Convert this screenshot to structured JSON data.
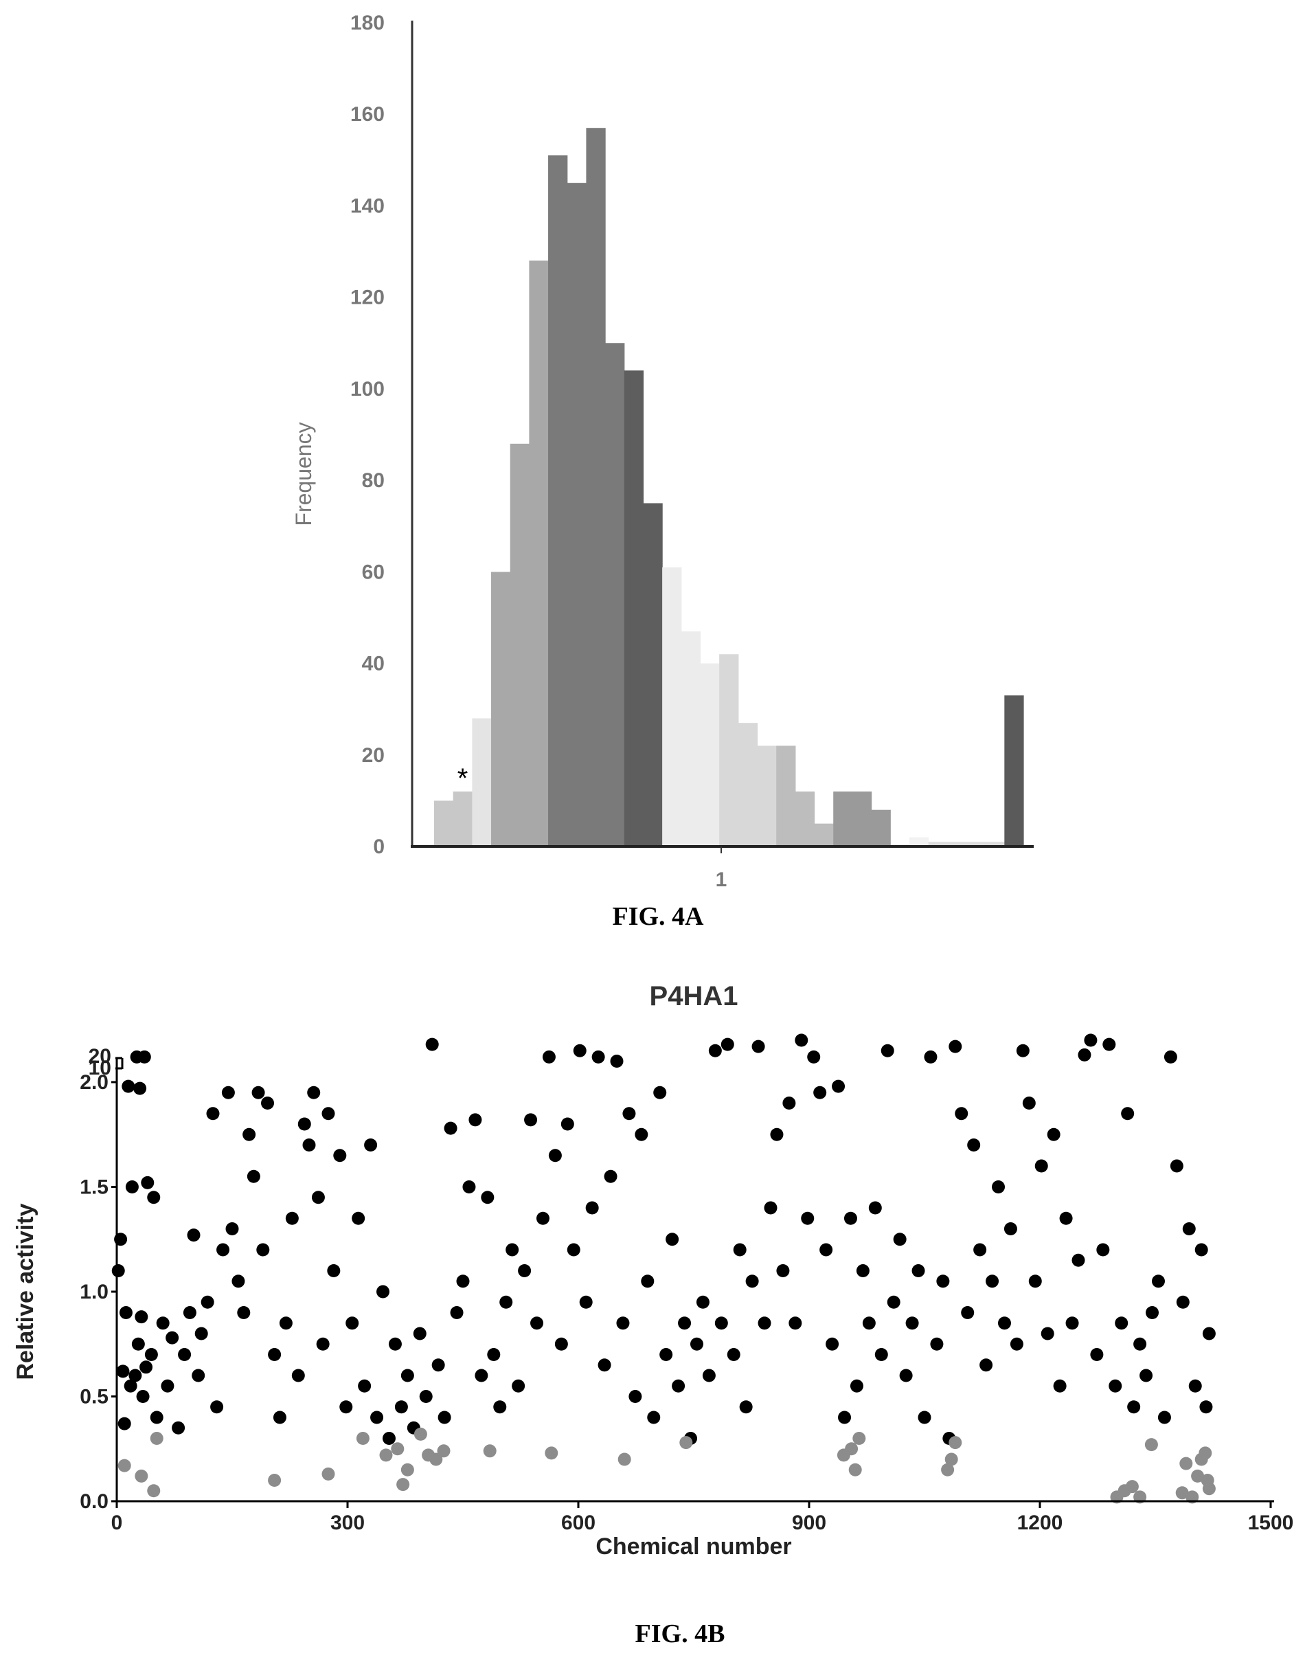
{
  "figure_a": {
    "caption": "FIG. 4A",
    "marker": "*"
  },
  "figure_b": {
    "caption": "FIG. 4B"
  },
  "chart_data": [
    {
      "type": "bar",
      "ylabel": "Frequency",
      "x_tick_labels": [
        "1"
      ],
      "ylim": [
        0,
        180
      ],
      "y_ticks": [
        0,
        20,
        40,
        60,
        80,
        100,
        120,
        140,
        160,
        180
      ],
      "values": [
        10,
        12,
        28,
        60,
        88,
        128,
        151,
        145,
        157,
        110,
        104,
        75,
        61,
        47,
        40,
        42,
        27,
        22,
        22,
        12,
        5,
        12,
        12,
        8,
        0,
        2,
        1,
        1,
        1,
        1,
        33
      ],
      "bar_shades": [
        "#c8c8c8",
        "#c8c8c8",
        "#e4e4e4",
        "#a8a8a8",
        "#a8a8a8",
        "#a8a8a8",
        "#7a7a7a",
        "#7a7a7a",
        "#7a7a7a",
        "#7a7a7a",
        "#5e5e5e",
        "#5e5e5e",
        "#ececec",
        "#ececec",
        "#ececec",
        "#d8d8d8",
        "#d8d8d8",
        "#d8d8d8",
        "#bdbdbd",
        "#bdbdbd",
        "#bdbdbd",
        "#9a9a9a",
        "#9a9a9a",
        "#9a9a9a",
        "#f2f2f2",
        "#f2f2f2",
        "#dddddd",
        "#dddddd",
        "#dddddd",
        "#dddddd",
        "#5a5a5a"
      ],
      "marker_bin_index": 1,
      "grid": false
    },
    {
      "type": "scatter",
      "title": "P4HA1",
      "xlabel": "Chemical number",
      "ylabel": "Relative activity",
      "xlim": [
        0,
        1500
      ],
      "x_ticks": [
        0,
        300,
        600,
        900,
        1200,
        1500
      ],
      "ylim": [
        0,
        2.0
      ],
      "y_ticks": [
        "0.0",
        "0.5",
        "1.0",
        "1.5",
        "2.0"
      ],
      "y_break_ticks": [
        "10",
        "20"
      ],
      "n_points": 1420,
      "grid": false,
      "colors": {
        "active": "#000000",
        "inhibitor_hit": "#8c8c8c"
      },
      "series": [
        {
          "points": [
            [
              2,
              1.1
            ],
            [
              5,
              1.25
            ],
            [
              8,
              0.62
            ],
            [
              10,
              0.37
            ],
            [
              12,
              0.9
            ],
            [
              15,
              1.98
            ],
            [
              18,
              0.55
            ],
            [
              20,
              1.5
            ],
            [
              24,
              0.6
            ],
            [
              26,
              2.12
            ],
            [
              28,
              0.75
            ],
            [
              30,
              1.97
            ],
            [
              32,
              0.88
            ],
            [
              34,
              0.5
            ],
            [
              36,
              2.12
            ],
            [
              38,
              0.64
            ],
            [
              40,
              1.52
            ],
            [
              45,
              0.7
            ],
            [
              48,
              1.45
            ],
            [
              52,
              0.4
            ],
            [
              60,
              0.85
            ],
            [
              66,
              0.55
            ],
            [
              72,
              0.78
            ],
            [
              80,
              0.35
            ],
            [
              88,
              0.7
            ],
            [
              95,
              0.9
            ],
            [
              100,
              1.27
            ],
            [
              106,
              0.6
            ],
            [
              110,
              0.8
            ],
            [
              118,
              0.95
            ],
            [
              125,
              1.85
            ],
            [
              130,
              0.45
            ],
            [
              138,
              1.2
            ],
            [
              145,
              1.95
            ],
            [
              150,
              1.3
            ],
            [
              158,
              1.05
            ],
            [
              165,
              0.9
            ],
            [
              172,
              1.75
            ],
            [
              178,
              1.55
            ],
            [
              184,
              1.95
            ],
            [
              190,
              1.2
            ],
            [
              196,
              1.9
            ],
            [
              205,
              0.7
            ],
            [
              212,
              0.4
            ],
            [
              220,
              0.85
            ],
            [
              228,
              1.35
            ],
            [
              236,
              0.6
            ],
            [
              244,
              1.8
            ],
            [
              250,
              1.7
            ],
            [
              256,
              1.95
            ],
            [
              262,
              1.45
            ],
            [
              268,
              0.75
            ],
            [
              275,
              1.85
            ],
            [
              282,
              1.1
            ],
            [
              290,
              1.65
            ],
            [
              298,
              0.45
            ],
            [
              306,
              0.85
            ],
            [
              314,
              1.35
            ],
            [
              322,
              0.55
            ],
            [
              330,
              1.7
            ],
            [
              338,
              0.4
            ],
            [
              346,
              1.0
            ],
            [
              354,
              0.3
            ],
            [
              362,
              0.75
            ],
            [
              370,
              0.45
            ],
            [
              378,
              0.6
            ],
            [
              386,
              0.35
            ],
            [
              394,
              0.8
            ],
            [
              402,
              0.5
            ],
            [
              410,
              2.18
            ],
            [
              418,
              0.65
            ],
            [
              426,
              0.4
            ],
            [
              434,
              1.78
            ],
            [
              442,
              0.9
            ],
            [
              450,
              1.05
            ],
            [
              458,
              1.5
            ],
            [
              466,
              1.82
            ],
            [
              474,
              0.6
            ],
            [
              482,
              1.45
            ],
            [
              490,
              0.7
            ],
            [
              498,
              0.45
            ],
            [
              506,
              0.95
            ],
            [
              514,
              1.2
            ],
            [
              522,
              0.55
            ],
            [
              530,
              1.1
            ],
            [
              538,
              1.82
            ],
            [
              546,
              0.85
            ],
            [
              554,
              1.35
            ],
            [
              562,
              2.12
            ],
            [
              570,
              1.65
            ],
            [
              578,
              0.75
            ],
            [
              586,
              1.8
            ],
            [
              594,
              1.2
            ],
            [
              602,
              2.15
            ],
            [
              610,
              0.95
            ],
            [
              618,
              1.4
            ],
            [
              626,
              2.12
            ],
            [
              634,
              0.65
            ],
            [
              642,
              1.55
            ],
            [
              650,
              2.1
            ],
            [
              658,
              0.85
            ],
            [
              666,
              1.85
            ],
            [
              674,
              0.5
            ],
            [
              682,
              1.75
            ],
            [
              690,
              1.05
            ],
            [
              698,
              0.4
            ],
            [
              706,
              1.95
            ],
            [
              714,
              0.7
            ],
            [
              722,
              1.25
            ],
            [
              730,
              0.55
            ],
            [
              738,
              0.85
            ],
            [
              746,
              0.3
            ],
            [
              754,
              0.75
            ],
            [
              762,
              0.95
            ],
            [
              770,
              0.6
            ],
            [
              778,
              2.15
            ],
            [
              786,
              0.85
            ],
            [
              794,
              2.18
            ],
            [
              802,
              0.7
            ],
            [
              810,
              1.2
            ],
            [
              818,
              0.45
            ],
            [
              826,
              1.05
            ],
            [
              834,
              2.17
            ],
            [
              842,
              0.85
            ],
            [
              850,
              1.4
            ],
            [
              858,
              1.75
            ],
            [
              866,
              1.1
            ],
            [
              874,
              1.9
            ],
            [
              882,
              0.85
            ],
            [
              890,
              2.2
            ],
            [
              898,
              1.35
            ],
            [
              906,
              2.12
            ],
            [
              914,
              1.95
            ],
            [
              922,
              1.2
            ],
            [
              930,
              0.75
            ],
            [
              938,
              1.98
            ],
            [
              946,
              0.4
            ],
            [
              954,
              1.35
            ],
            [
              962,
              0.55
            ],
            [
              970,
              1.1
            ],
            [
              978,
              0.85
            ],
            [
              986,
              1.4
            ],
            [
              994,
              0.7
            ],
            [
              1002,
              2.15
            ],
            [
              1010,
              0.95
            ],
            [
              1018,
              1.25
            ],
            [
              1026,
              0.6
            ],
            [
              1034,
              0.85
            ],
            [
              1042,
              1.1
            ],
            [
              1050,
              0.4
            ],
            [
              1058,
              2.12
            ],
            [
              1066,
              0.75
            ],
            [
              1074,
              1.05
            ],
            [
              1082,
              0.3
            ],
            [
              1090,
              2.17
            ],
            [
              1098,
              1.85
            ],
            [
              1106,
              0.9
            ],
            [
              1114,
              1.7
            ],
            [
              1122,
              1.2
            ],
            [
              1130,
              0.65
            ],
            [
              1138,
              1.05
            ],
            [
              1146,
              1.5
            ],
            [
              1154,
              0.85
            ],
            [
              1162,
              1.3
            ],
            [
              1170,
              0.75
            ],
            [
              1178,
              2.15
            ],
            [
              1186,
              1.9
            ],
            [
              1194,
              1.05
            ],
            [
              1202,
              1.6
            ],
            [
              1210,
              0.8
            ],
            [
              1218,
              1.75
            ],
            [
              1226,
              0.55
            ],
            [
              1234,
              1.35
            ],
            [
              1242,
              0.85
            ],
            [
              1250,
              1.15
            ],
            [
              1258,
              2.13
            ],
            [
              1266,
              2.2
            ],
            [
              1274,
              0.7
            ],
            [
              1282,
              1.2
            ],
            [
              1290,
              2.18
            ],
            [
              1298,
              0.55
            ],
            [
              1306,
              0.85
            ],
            [
              1314,
              1.85
            ],
            [
              1322,
              0.45
            ],
            [
              1330,
              0.75
            ],
            [
              1338,
              0.6
            ],
            [
              1346,
              0.9
            ],
            [
              1354,
              1.05
            ],
            [
              1362,
              0.4
            ],
            [
              1370,
              2.12
            ],
            [
              1378,
              1.6
            ],
            [
              1386,
              0.95
            ],
            [
              1394,
              1.3
            ],
            [
              1402,
              0.55
            ],
            [
              1410,
              1.2
            ],
            [
              1416,
              0.45
            ],
            [
              1420,
              0.8
            ]
          ]
        },
        {
          "points": [
            [
              10,
              0.17
            ],
            [
              32,
              0.12
            ],
            [
              48,
              0.05
            ],
            [
              52,
              0.3
            ],
            [
              205,
              0.1
            ],
            [
              275,
              0.13
            ],
            [
              320,
              0.3
            ],
            [
              350,
              0.22
            ],
            [
              365,
              0.25
            ],
            [
              372,
              0.08
            ],
            [
              378,
              0.15
            ],
            [
              395,
              0.32
            ],
            [
              405,
              0.22
            ],
            [
              415,
              0.2
            ],
            [
              425,
              0.24
            ],
            [
              485,
              0.24
            ],
            [
              565,
              0.23
            ],
            [
              660,
              0.2
            ],
            [
              740,
              0.28
            ],
            [
              945,
              0.22
            ],
            [
              955,
              0.25
            ],
            [
              960,
              0.15
            ],
            [
              965,
              0.3
            ],
            [
              1080,
              0.15
            ],
            [
              1085,
              0.2
            ],
            [
              1090,
              0.28
            ],
            [
              1300,
              0.02
            ],
            [
              1310,
              0.05
            ],
            [
              1320,
              0.07
            ],
            [
              1330,
              0.02
            ],
            [
              1345,
              0.27
            ],
            [
              1385,
              0.04
            ],
            [
              1390,
              0.18
            ],
            [
              1398,
              0.02
            ],
            [
              1405,
              0.12
            ],
            [
              1410,
              0.2
            ],
            [
              1415,
              0.23
            ],
            [
              1418,
              0.1
            ],
            [
              1420,
              0.06
            ]
          ]
        }
      ]
    }
  ]
}
